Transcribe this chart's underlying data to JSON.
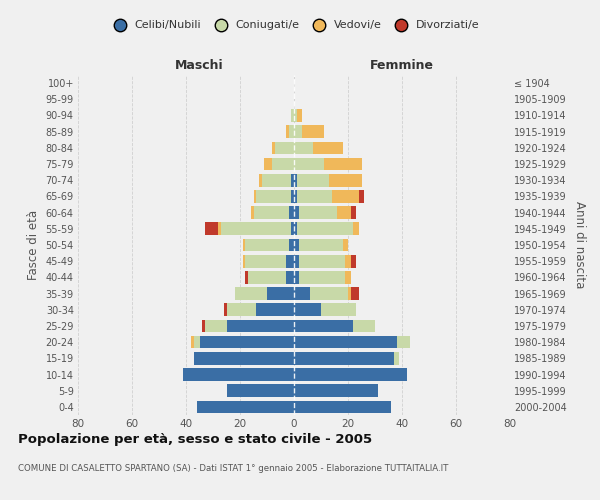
{
  "age_groups": [
    "0-4",
    "5-9",
    "10-14",
    "15-19",
    "20-24",
    "25-29",
    "30-34",
    "35-39",
    "40-44",
    "45-49",
    "50-54",
    "55-59",
    "60-64",
    "65-69",
    "70-74",
    "75-79",
    "80-84",
    "85-89",
    "90-94",
    "95-99",
    "100+"
  ],
  "year_labels": [
    "2000-2004",
    "1995-1999",
    "1990-1994",
    "1985-1989",
    "1980-1984",
    "1975-1979",
    "1970-1974",
    "1965-1969",
    "1960-1964",
    "1955-1959",
    "1950-1954",
    "1945-1949",
    "1940-1944",
    "1935-1939",
    "1930-1934",
    "1925-1929",
    "1920-1924",
    "1915-1919",
    "1910-1914",
    "1905-1909",
    "≤ 1904"
  ],
  "male": {
    "celibi": [
      36,
      25,
      41,
      37,
      35,
      25,
      14,
      10,
      3,
      3,
      2,
      1,
      2,
      1,
      1,
      0,
      0,
      0,
      0,
      0,
      0
    ],
    "coniugati": [
      0,
      0,
      0,
      0,
      2,
      8,
      11,
      12,
      14,
      15,
      16,
      26,
      13,
      13,
      11,
      8,
      7,
      2,
      1,
      0,
      0
    ],
    "vedovi": [
      0,
      0,
      0,
      0,
      1,
      0,
      0,
      0,
      0,
      1,
      1,
      1,
      1,
      1,
      1,
      3,
      1,
      1,
      0,
      0,
      0
    ],
    "divorziati": [
      0,
      0,
      0,
      0,
      0,
      1,
      1,
      0,
      1,
      0,
      0,
      5,
      0,
      0,
      0,
      0,
      0,
      0,
      0,
      0,
      0
    ]
  },
  "female": {
    "nubili": [
      36,
      31,
      42,
      37,
      38,
      22,
      10,
      6,
      2,
      2,
      2,
      1,
      2,
      1,
      1,
      0,
      0,
      0,
      0,
      0,
      0
    ],
    "coniugate": [
      0,
      0,
      0,
      2,
      5,
      8,
      13,
      14,
      17,
      17,
      16,
      21,
      14,
      13,
      12,
      11,
      7,
      3,
      1,
      0,
      0
    ],
    "vedove": [
      0,
      0,
      0,
      0,
      0,
      0,
      0,
      1,
      2,
      2,
      2,
      2,
      5,
      10,
      12,
      14,
      11,
      8,
      2,
      0,
      0
    ],
    "divorziate": [
      0,
      0,
      0,
      0,
      0,
      0,
      0,
      3,
      0,
      2,
      0,
      0,
      2,
      2,
      0,
      0,
      0,
      0,
      0,
      0,
      0
    ]
  },
  "colors": {
    "celibi": "#3a6ea5",
    "coniugati": "#c8d9a8",
    "vedovi": "#f0b85a",
    "divorziati": "#c0392b"
  },
  "xlim": 80,
  "title": "Popolazione per età, sesso e stato civile - 2005",
  "subtitle": "COMUNE DI CASALETTO SPARTANO (SA) - Dati ISTAT 1° gennaio 2005 - Elaborazione TUTTAITALIA.IT",
  "ylabel_left": "Fasce di età",
  "ylabel_right": "Anni di nascita",
  "xlabel_left": "Maschi",
  "xlabel_right": "Femmine",
  "bg_color": "#f0f0f0",
  "grid_color": "#d0d0d0"
}
